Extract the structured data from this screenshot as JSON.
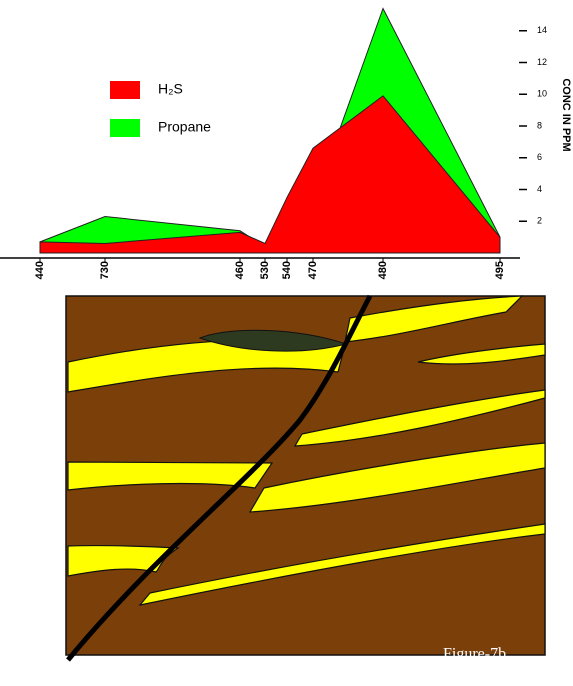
{
  "chart_data": {
    "type": "area",
    "categories": [
      "440",
      "730",
      "460",
      "530",
      "540",
      "470",
      "480",
      "495"
    ],
    "series": [
      {
        "name": "Propane",
        "color": "#00ff00",
        "values": [
          0.7,
          2.3,
          1.4,
          0.4,
          3.1,
          3.1,
          15.4,
          1.0
        ]
      },
      {
        "name": "H₂S",
        "color": "#ff0000",
        "values": [
          0.7,
          0.6,
          1.3,
          0.6,
          3.5,
          6.6,
          9.9,
          1.0
        ]
      }
    ],
    "ylabel": "CONC IN PPM",
    "ylim": [
      0,
      16
    ],
    "yticks": [
      2,
      4,
      6,
      8,
      10,
      12,
      14
    ],
    "annotation": "Figure-7b"
  }
}
